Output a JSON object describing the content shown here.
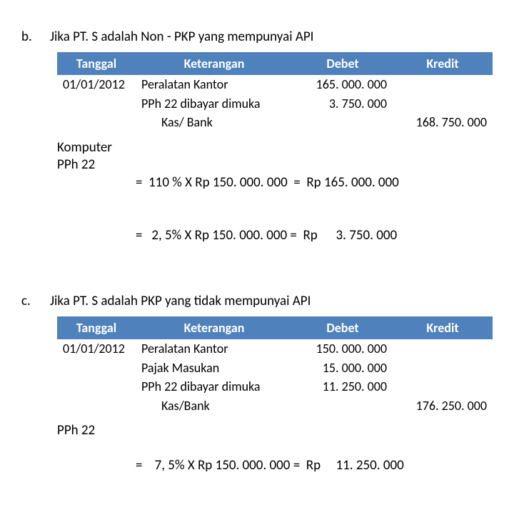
{
  "header_color": "#4f81bd",
  "header_text_color": "#ffffff",
  "sections": {
    "b": {
      "letter": "b.",
      "title": "Jika PT. S adalah Non -  PKP yang mempunyai API",
      "columns": [
        "Tanggal",
        "Keterangan",
        "Debet",
        "Kredit"
      ],
      "date": "01/01/2012",
      "desc": [
        "Peralatan Kantor",
        "PPh 22 dibayar dimuka",
        "Kas/ Bank"
      ],
      "debet": [
        "165. 000. 000",
        "3. 750. 000",
        ""
      ],
      "kredit": [
        "",
        "",
        "168. 750. 000"
      ],
      "calc_labels": [
        "Komputer",
        "PPh 22"
      ],
      "calc_lines": [
        "=  110 % X Rp 150. 000. 000  =  Rp 165. 000. 000",
        "=   2, 5% X Rp 150. 000. 000 =  Rp      3. 750. 000"
      ]
    },
    "c": {
      "letter": "c.",
      "title": "Jika PT. S adalah PKP yang tidak mempunyai API",
      "columns": [
        "Tanggal",
        "Keterangan",
        "Debet",
        "Kredit"
      ],
      "date": "01/01/2012",
      "desc": [
        "Peralatan Kantor",
        "Pajak Masukan",
        "PPh 22 dibayar dimuka",
        "Kas/Bank"
      ],
      "debet": [
        "150. 000. 000",
        "15. 000. 000",
        "11. 250. 000",
        ""
      ],
      "kredit": [
        "",
        "",
        "",
        "176. 250. 000"
      ],
      "calc_labels": [
        "PPh 22"
      ],
      "calc_lines": [
        "=    7, 5% X Rp 150. 000. 000 =  Rp     11. 250. 000"
      ]
    }
  }
}
